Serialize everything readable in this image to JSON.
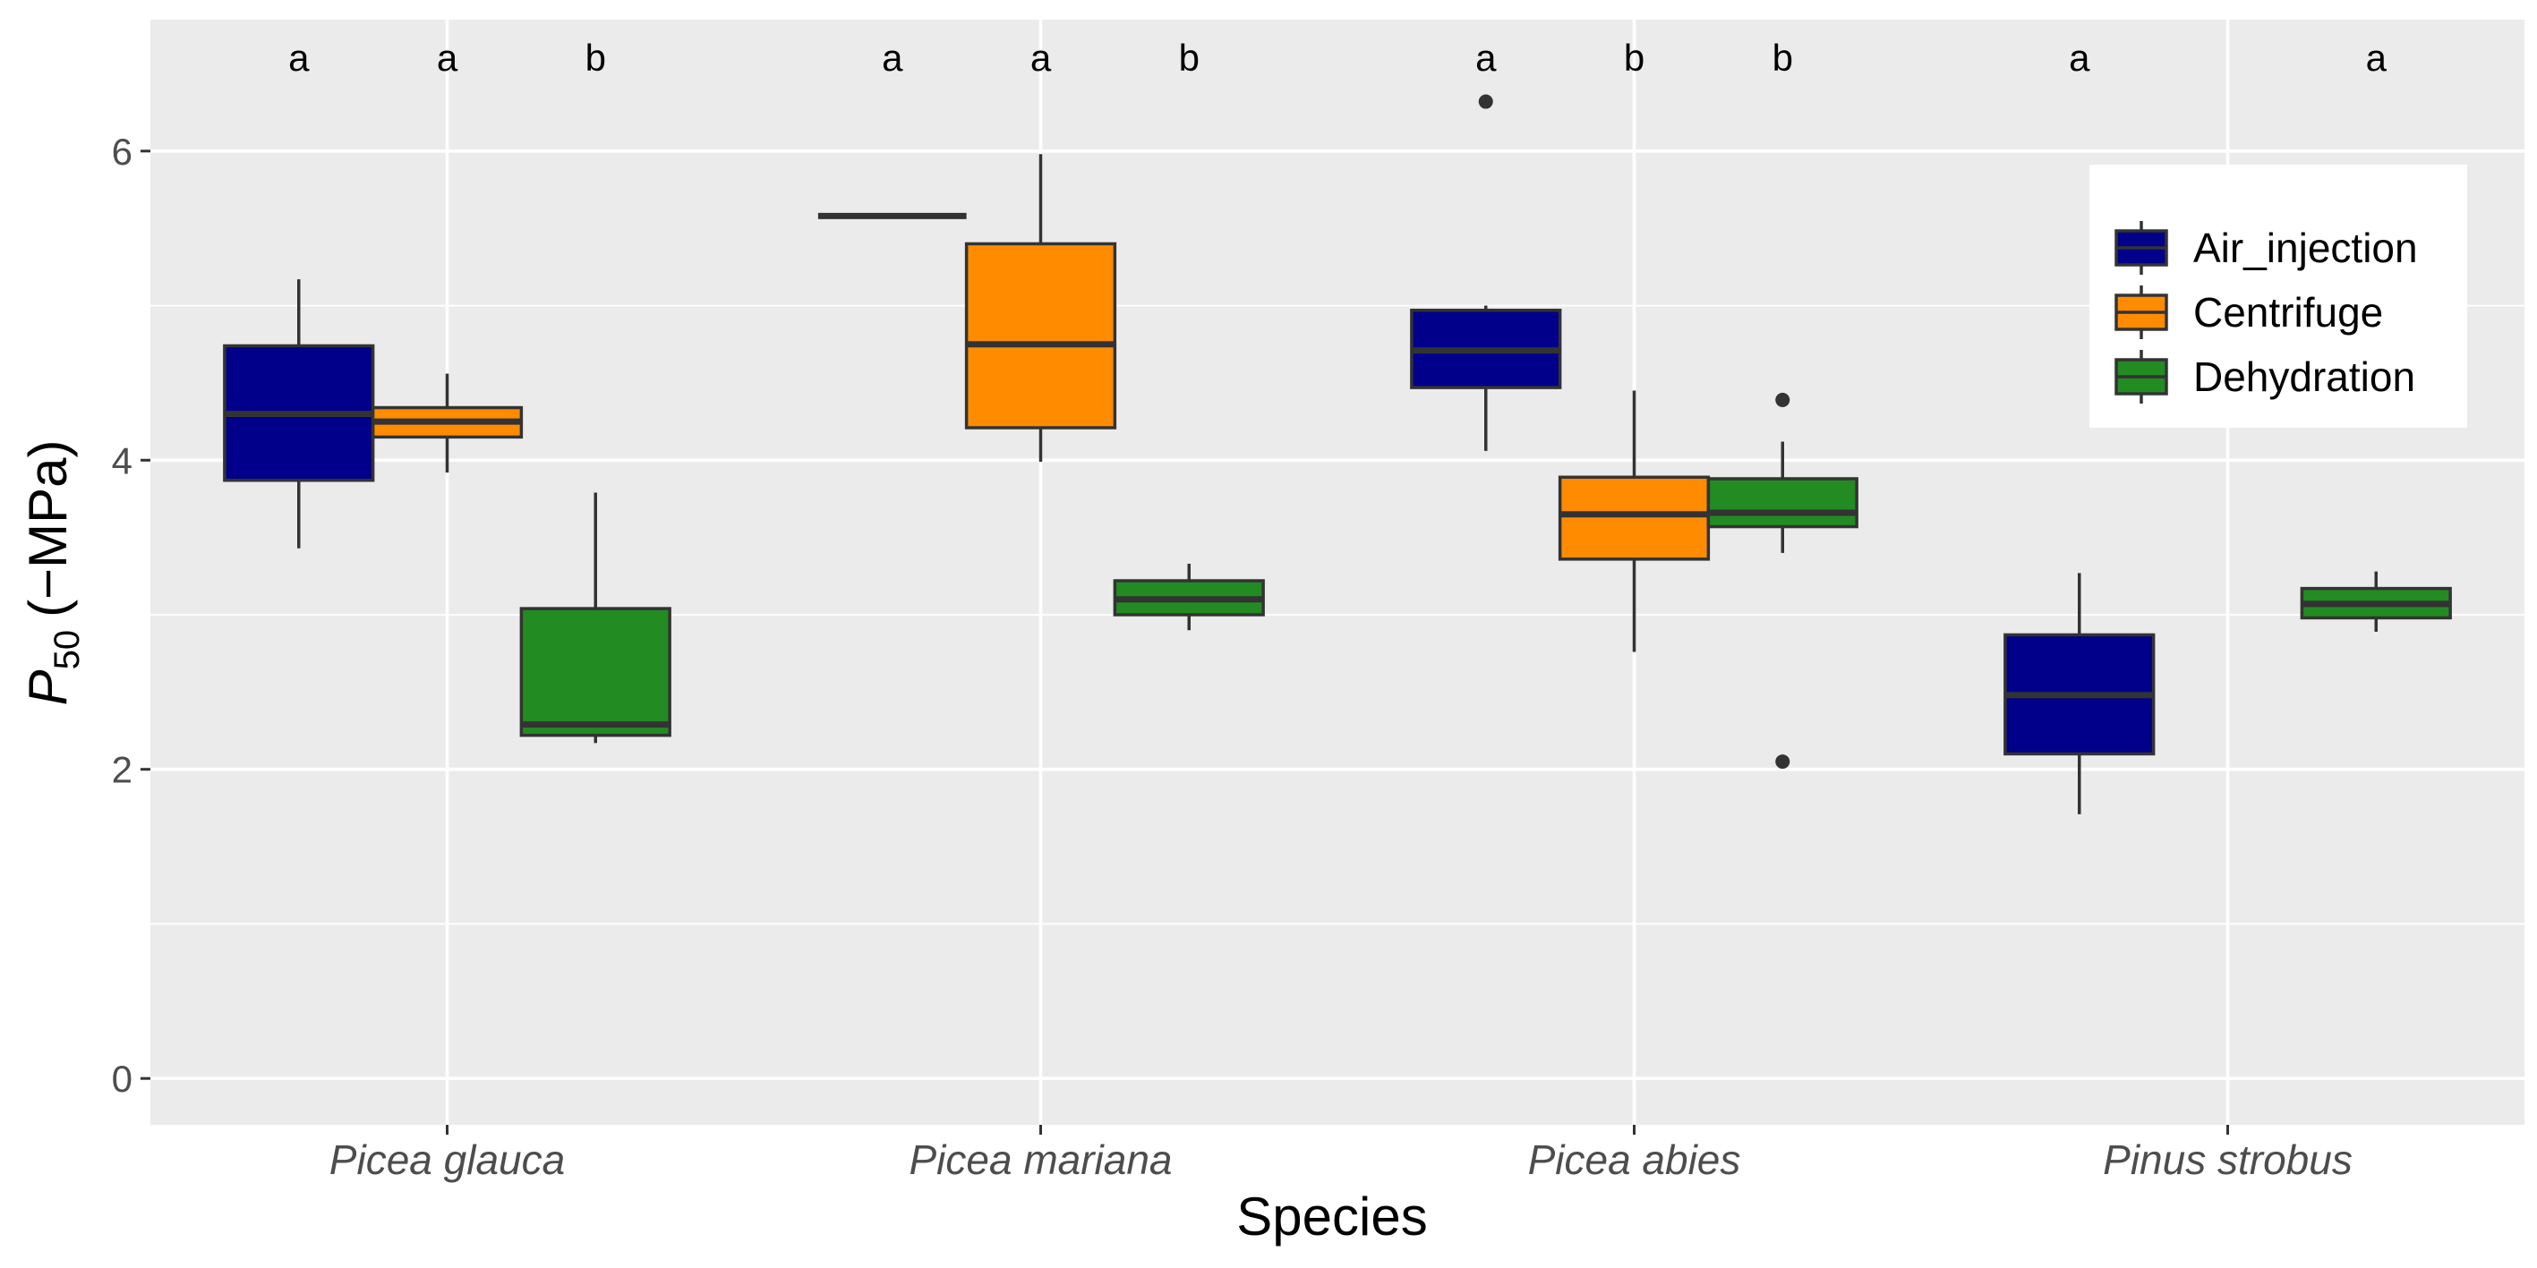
{
  "chart_data": {
    "type": "boxplot",
    "xlabel": "Species",
    "ylabel": "P50 (−MPa)",
    "ylabel_parts": {
      "symbol": "P",
      "subscript": "50",
      "unit": "(−MPa)"
    },
    "ylim": [
      -0.3,
      6.85
    ],
    "yticks": [
      0,
      2,
      4,
      6
    ],
    "categories": [
      "Picea glauca",
      "Picea mariana",
      "Picea abies",
      "Pinus strobus"
    ],
    "legend": {
      "position": "top-right",
      "entries": [
        {
          "name": "Air_injection",
          "color": "#00008B"
        },
        {
          "name": "Centrifuge",
          "color": "#FF8C00"
        },
        {
          "name": "Dehydration",
          "color": "#228B22"
        }
      ]
    },
    "series": [
      {
        "name": "Air_injection",
        "color": "#00008B",
        "boxes": [
          {
            "category": "Picea glauca",
            "min": 3.43,
            "q1": 3.87,
            "median": 4.3,
            "q3": 4.74,
            "max": 5.17,
            "outliers": []
          },
          {
            "category": "Picea mariana",
            "min": 5.58,
            "q1": 5.58,
            "median": 5.58,
            "q3": 5.58,
            "max": 5.58,
            "outliers": []
          },
          {
            "category": "Picea abies",
            "min": 4.06,
            "q1": 4.47,
            "median": 4.71,
            "q3": 4.97,
            "max": 5.0,
            "outliers": [
              6.32
            ]
          },
          {
            "category": "Pinus strobus",
            "min": 1.71,
            "q1": 2.1,
            "median": 2.48,
            "q3": 2.87,
            "max": 3.27,
            "outliers": []
          }
        ]
      },
      {
        "name": "Centrifuge",
        "color": "#FF8C00",
        "boxes": [
          {
            "category": "Picea glauca",
            "min": 3.92,
            "q1": 4.15,
            "median": 4.25,
            "q3": 4.34,
            "max": 4.56,
            "outliers": []
          },
          {
            "category": "Picea mariana",
            "min": 3.99,
            "q1": 4.21,
            "median": 4.75,
            "q3": 5.4,
            "max": 5.98,
            "outliers": []
          },
          {
            "category": "Picea abies",
            "min": 2.76,
            "q1": 3.36,
            "median": 3.65,
            "q3": 3.89,
            "max": 4.45,
            "outliers": []
          }
        ]
      },
      {
        "name": "Dehydration",
        "color": "#228B22",
        "boxes": [
          {
            "category": "Picea glauca",
            "min": 2.17,
            "q1": 2.22,
            "median": 2.29,
            "q3": 3.04,
            "max": 3.79,
            "outliers": []
          },
          {
            "category": "Picea mariana",
            "min": 2.9,
            "q1": 3.0,
            "median": 3.1,
            "q3": 3.22,
            "max": 3.33,
            "outliers": []
          },
          {
            "category": "Picea abies",
            "min": 3.4,
            "q1": 3.57,
            "median": 3.66,
            "q3": 3.88,
            "max": 4.12,
            "outliers": [
              4.39,
              2.05
            ]
          },
          {
            "category": "Pinus strobus",
            "min": 2.89,
            "q1": 2.98,
            "median": 3.07,
            "q3": 3.17,
            "max": 3.28,
            "outliers": []
          }
        ]
      }
    ],
    "annotations": [
      {
        "category": "Picea glauca",
        "series": "Air_injection",
        "text": "a"
      },
      {
        "category": "Picea glauca",
        "series": "Centrifuge",
        "text": "a"
      },
      {
        "category": "Picea glauca",
        "series": "Dehydration",
        "text": "b"
      },
      {
        "category": "Picea mariana",
        "series": "Air_injection",
        "text": "a"
      },
      {
        "category": "Picea mariana",
        "series": "Centrifuge",
        "text": "a"
      },
      {
        "category": "Picea mariana",
        "series": "Dehydration",
        "text": "b"
      },
      {
        "category": "Picea abies",
        "series": "Air_injection",
        "text": "a"
      },
      {
        "category": "Picea abies",
        "series": "Centrifuge",
        "text": "b"
      },
      {
        "category": "Picea abies",
        "series": "Dehydration",
        "text": "b"
      },
      {
        "category": "Pinus strobus",
        "series": "Air_injection",
        "text": "a"
      },
      {
        "category": "Pinus strobus",
        "series": "Dehydration",
        "text": "a"
      }
    ],
    "annotation_y": 6.6,
    "grid": true
  }
}
